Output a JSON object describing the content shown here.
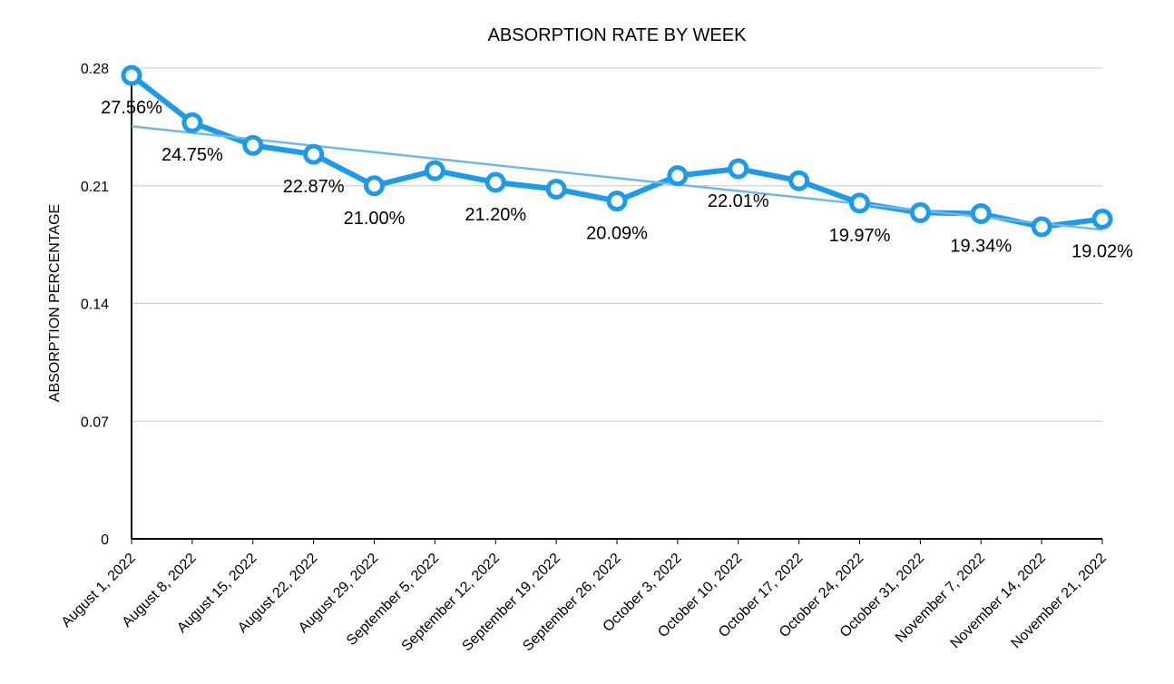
{
  "chart_data": {
    "type": "line",
    "title": "ABSORPTION RATE BY WEEK",
    "y_label": "ABSORPTION PERCENTAGE",
    "categories": [
      "August 1, 2022",
      "August 8, 2022",
      "August 15, 2022",
      "August 22, 2022",
      "August 29, 2022",
      "September 5, 2022",
      "September 12, 2022",
      "September 19, 2022",
      "September 26, 2022",
      "October 3, 2022",
      "October 10, 2022",
      "October 17, 2022",
      "October 24, 2022",
      "October 31, 2022",
      "November 7, 2022",
      "November 14, 2022",
      "November 21, 2022"
    ],
    "series": [
      {
        "name": "Absorption rate",
        "color": "#1d9bea",
        "values": [
          0.2756,
          0.2475,
          0.234,
          0.2287,
          0.21,
          0.219,
          0.212,
          0.208,
          0.2009,
          0.216,
          0.2201,
          0.213,
          0.1997,
          0.194,
          0.1934,
          0.1856,
          0.1902
        ],
        "value_labels": [
          "27.56%",
          "24.75%",
          null,
          "22.87%",
          "21.00%",
          null,
          "21.20%",
          null,
          "20.09%",
          null,
          "22.01%",
          null,
          "19.97%",
          null,
          "19.34%",
          null,
          "19.02%"
        ]
      }
    ],
    "trendline": true,
    "trendline_color": "#6fb8e8",
    "ylim": [
      0,
      0.28
    ],
    "yticks": [
      0,
      0.07,
      0.14,
      0.21,
      0.28
    ],
    "grid": true
  }
}
